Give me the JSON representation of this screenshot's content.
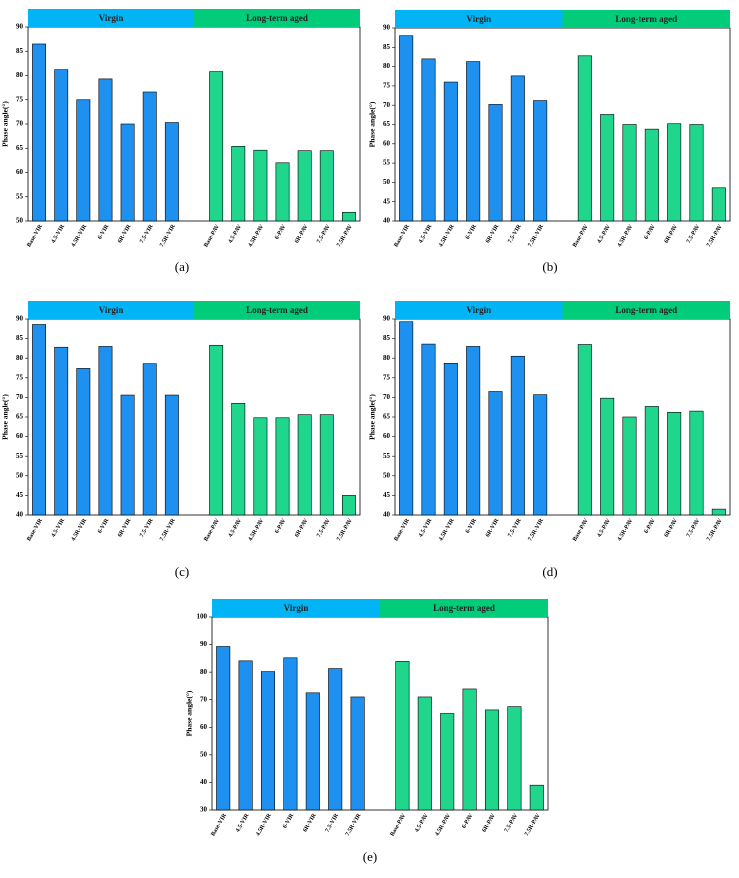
{
  "chart_data": [
    {
      "type": "bar",
      "panel_label": "(a)",
      "ylabel": "Phase angle(°)",
      "categories": [
        "Base-VIR",
        "4.5-VIR",
        "4.5R-VIR",
        "6-VIR",
        "6R-VIR",
        "7.5-VIR",
        "7.5R-VIR",
        null,
        "Base-PAV",
        "4.5-PAV",
        "4.5R-PAV",
        "6-PAV",
        "6R-PAV",
        "7.5-PAV",
        "7.5R-PAV"
      ],
      "series": [
        {
          "name": "Virgin",
          "color": "#1e90ef",
          "band_color": "#00b4f5",
          "values": [
            86.5,
            81.2,
            75,
            79.3,
            70,
            76.6,
            70.3,
            null,
            null,
            null,
            null,
            null,
            null,
            null,
            null
          ]
        },
        {
          "name": "Long-term aged",
          "color": "#20d68c",
          "band_color": "#00cc7a",
          "values": [
            null,
            null,
            null,
            null,
            null,
            null,
            null,
            null,
            80.8,
            65.4,
            64.6,
            62,
            64.5,
            64.5,
            51.8
          ]
        }
      ],
      "ylim": [
        50,
        90
      ],
      "yticks": [
        50,
        55,
        60,
        65,
        70,
        75,
        80,
        85,
        90
      ]
    },
    {
      "type": "bar",
      "panel_label": "(b)",
      "ylabel": "Phase angle(°)",
      "categories": [
        "Base-VIR",
        "4.5-VIR",
        "4.5R-VIR",
        "6-VIR",
        "6R-VIR",
        "7.5-VIR",
        "7.5R-VIR",
        null,
        "Base-PAV",
        "4.5-PAV",
        "4.5R-PAV",
        "6-PAV",
        "6R-PAV",
        "7.5-PAV",
        "7.5R-PAV"
      ],
      "series": [
        {
          "name": "Virgin",
          "color": "#1e90ef",
          "band_color": "#00b4f5",
          "values": [
            88,
            82,
            76,
            81.3,
            70.2,
            77.6,
            71.2,
            null,
            null,
            null,
            null,
            null,
            null,
            null,
            null
          ]
        },
        {
          "name": "Long-term aged",
          "color": "#20d68c",
          "band_color": "#00cc7a",
          "values": [
            null,
            null,
            null,
            null,
            null,
            null,
            null,
            null,
            82.8,
            67.6,
            65,
            63.8,
            65.2,
            65,
            48.6
          ]
        }
      ],
      "ylim": [
        40,
        90
      ],
      "yticks": [
        40,
        45,
        50,
        55,
        60,
        65,
        70,
        75,
        80,
        85,
        90
      ]
    },
    {
      "type": "bar",
      "panel_label": "(c)",
      "ylabel": "Phase angle(°)",
      "categories": [
        "Base-VIR",
        "4.5-VIR",
        "4.5R-VIR",
        "6-VIR",
        "6R-VIR",
        "7.5-VIR",
        "7.5R-VIR",
        null,
        "Base-PAV",
        "4.5-PAV",
        "4.5R-PAV",
        "6-PAV",
        "6R-PAV",
        "7.5-PAV",
        "7.5R-PAV"
      ],
      "series": [
        {
          "name": "Virgin",
          "color": "#1e90ef",
          "band_color": "#00b4f5",
          "values": [
            88.6,
            82.8,
            77.4,
            83,
            70.6,
            78.6,
            70.6,
            null,
            null,
            null,
            null,
            null,
            null,
            null,
            null
          ]
        },
        {
          "name": "Long-term aged",
          "color": "#20d68c",
          "band_color": "#00cc7a",
          "values": [
            null,
            null,
            null,
            null,
            null,
            null,
            null,
            null,
            83.3,
            68.5,
            64.8,
            64.8,
            65.6,
            65.6,
            45
          ]
        }
      ],
      "ylim": [
        40,
        90
      ],
      "yticks": [
        40,
        45,
        50,
        55,
        60,
        65,
        70,
        75,
        80,
        85,
        90
      ]
    },
    {
      "type": "bar",
      "panel_label": "(d)",
      "ylabel": "Phase angle(°)",
      "categories": [
        "Base-VIR",
        "4.5-VIR",
        "4.5R-VIR",
        "6-VIR",
        "6R-VIR",
        "7.5-VIR",
        "7.5R-VIR",
        null,
        "Base-PAV",
        "4.5-PAV",
        "4.5R-PAV",
        "6-PAV",
        "6R-PAV",
        "7.5-PAV",
        "7.5R-PAV"
      ],
      "series": [
        {
          "name": "Virgin",
          "color": "#1e90ef",
          "band_color": "#00b4f5",
          "values": [
            89.3,
            83.6,
            78.7,
            83,
            71.5,
            80.5,
            70.7,
            null,
            null,
            null,
            null,
            null,
            null,
            null,
            null
          ]
        },
        {
          "name": "Long-term aged",
          "color": "#20d68c",
          "band_color": "#00cc7a",
          "values": [
            null,
            null,
            null,
            null,
            null,
            null,
            null,
            null,
            83.5,
            69.8,
            65,
            67.7,
            66.2,
            66.5,
            41.5
          ]
        }
      ],
      "ylim": [
        40,
        90
      ],
      "yticks": [
        40,
        45,
        50,
        55,
        60,
        65,
        70,
        75,
        80,
        85,
        90
      ]
    },
    {
      "type": "bar",
      "panel_label": "(e)",
      "ylabel": "Phase angle(°)",
      "categories": [
        "Base-VIR",
        "4.5-VIR",
        "4.5R-VIR",
        "6-VIR",
        "6R-VIR",
        "7.5-VIR",
        "7.5R-VIR",
        null,
        "Base-PAV",
        "4.5-PAV",
        "4.5R-PAV",
        "6-PAV",
        "6R-PAV",
        "7.5-PAV",
        "7.5R-PAV"
      ],
      "series": [
        {
          "name": "Virgin",
          "color": "#1e90ef",
          "band_color": "#00b4f5",
          "values": [
            89.3,
            84.1,
            80.2,
            85.2,
            72.5,
            81.3,
            71,
            null,
            null,
            null,
            null,
            null,
            null,
            null,
            null
          ]
        },
        {
          "name": "Long-term aged",
          "color": "#20d68c",
          "band_color": "#00cc7a",
          "values": [
            null,
            null,
            null,
            null,
            null,
            null,
            null,
            null,
            83.9,
            71,
            65,
            73.9,
            66.3,
            67.5,
            39
          ]
        }
      ],
      "ylim": [
        30,
        100
      ],
      "yticks": [
        30,
        40,
        50,
        60,
        70,
        80,
        90,
        100
      ]
    }
  ]
}
